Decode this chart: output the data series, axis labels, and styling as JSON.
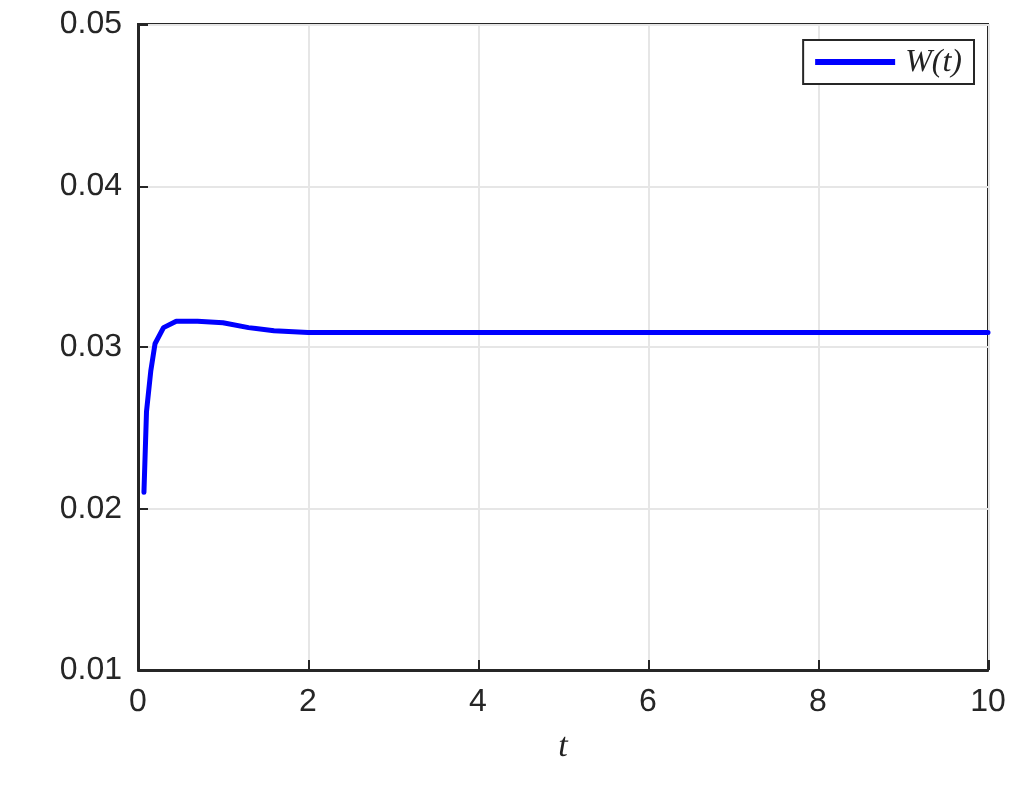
{
  "chart_data": {
    "type": "line",
    "xlabel": "t",
    "x": [
      0.07,
      0.1,
      0.15,
      0.2,
      0.3,
      0.45,
      0.7,
      1.0,
      1.3,
      1.6,
      2,
      3,
      4,
      5,
      6,
      7,
      8,
      9,
      10
    ],
    "series": [
      {
        "name": "W(t)",
        "color": "#0000ff",
        "values": [
          0.021,
          0.026,
          0.0285,
          0.0302,
          0.0312,
          0.0316,
          0.0316,
          0.0315,
          0.0312,
          0.031,
          0.0309,
          0.0309,
          0.0309,
          0.0309,
          0.0309,
          0.0309,
          0.0309,
          0.0309,
          0.0309
        ]
      }
    ],
    "xlim": [
      0,
      10
    ],
    "xticks": [
      0,
      2,
      4,
      6,
      8,
      10
    ],
    "ylim": [
      0.01,
      0.05
    ],
    "yticks": [
      0.01,
      0.02,
      0.03,
      0.04,
      0.05
    ],
    "grid": true,
    "legend": "top right",
    "marker": "none",
    "line_style": "solid"
  }
}
